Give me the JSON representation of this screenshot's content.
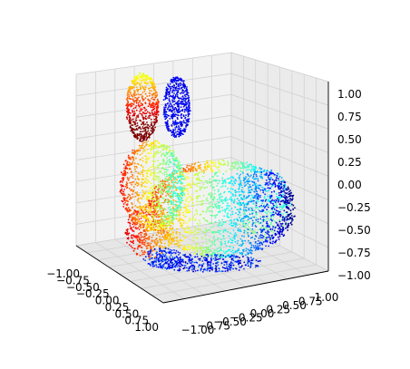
{
  "chart_data": {
    "type": "scatter3d",
    "title": "",
    "colormap": "jet",
    "x_ticks": [
      "−1.00",
      "−0.75",
      "−0.50",
      "−0.25",
      "0.00",
      "0.25",
      "0.50",
      "0.75",
      "1.00"
    ],
    "y_ticks": [
      "−1.00",
      "−0.75",
      "−0.50",
      "−0.25",
      "0.00",
      "0.25",
      "0.50",
      "0.75",
      "1.00"
    ],
    "z_ticks": [
      "−1.00",
      "−0.75",
      "−0.50",
      "−0.25",
      "0.00",
      "0.25",
      "0.50",
      "0.75",
      "1.00"
    ],
    "xlim": [
      -1,
      1
    ],
    "ylim": [
      -1,
      1
    ],
    "zlim": [
      -1,
      1
    ],
    "grid": true,
    "series": [
      {
        "shape": "bunny",
        "colors": [
          "#00007f",
          "#0000ff",
          "#007fff",
          "#00ffff",
          "#7fff7f",
          "#ffff00",
          "#ff7f00",
          "#ff0000",
          "#7f0000"
        ]
      }
    ]
  }
}
